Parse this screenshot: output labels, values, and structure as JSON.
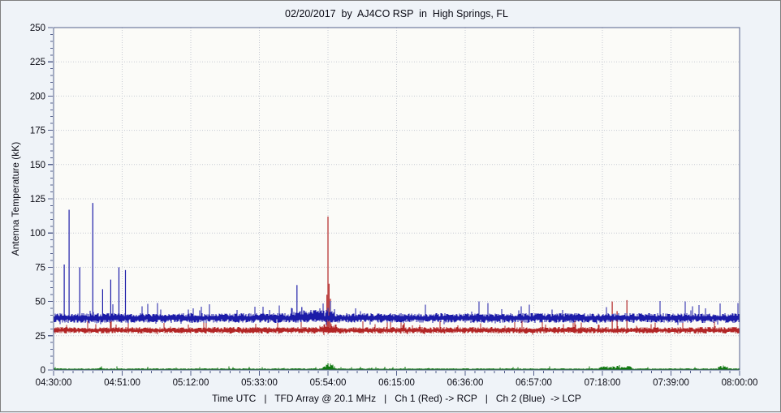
{
  "window": {
    "background": "#eff3f8",
    "plot_background": "#fbfbf8",
    "border_color": "#7f7f7f",
    "frame_color": "#55608c",
    "grid_color": "#c6cad2",
    "text_color": "#0a0a14"
  },
  "chart_data": {
    "type": "line",
    "title": "02/20/2017  by  AJ4CO RSP  in  High Springs, FL",
    "ylabel": "Antenna Temperature (kK)",
    "xlabel": "Time UTC   |   TFD Array @ 20.1 MHz   |   Ch 1 (Red) -> RCP   |   Ch 2 (Blue)  -> LCP",
    "x_start": "04:30:00",
    "x_end": "08:00:00",
    "x_ticks": [
      "04:30:00",
      "04:51:00",
      "05:12:00",
      "05:33:00",
      "05:54:00",
      "06:15:00",
      "06:36:00",
      "06:57:00",
      "07:18:00",
      "07:39:00",
      "08:00:00"
    ],
    "x_minor_seconds": 180,
    "ylim": [
      0,
      250
    ],
    "y_ticks": [
      0,
      25,
      50,
      75,
      100,
      125,
      150,
      175,
      200,
      225,
      250
    ],
    "y_minor_step": 5,
    "grid": "dotted",
    "legend_position": "none",
    "series": [
      {
        "id": "ch1-rcp",
        "name": "Ch 1 (Red) -> RCP",
        "color": "#b22525",
        "baseline_kk": 29,
        "noise_kk": 2,
        "seed": 11,
        "bumps": [
          {
            "start": "05:52:00",
            "end": "05:56:30",
            "peak_kk": 3
          }
        ],
        "spikes": [
          {
            "time": "05:53:40",
            "peak_kk": 55
          },
          {
            "time": "05:54:00",
            "peak_kk": 112
          },
          {
            "time": "05:54:20",
            "peak_kk": 63
          },
          {
            "time": "05:54:45",
            "peak_kk": 52
          },
          {
            "time": "07:21:00",
            "peak_kk": 50
          },
          {
            "time": "07:22:30",
            "peak_kk": 43
          },
          {
            "time": "07:25:30",
            "peak_kk": 51
          }
        ]
      },
      {
        "id": "ch2-lcp",
        "name": "Ch 2 (Blue) -> LCP",
        "color": "#1c1ca8",
        "baseline_kk": 38,
        "noise_kk": 3,
        "seed": 22,
        "bumps": [
          {
            "start": "05:43:00",
            "end": "05:56:00",
            "peak_kk": 4
          }
        ],
        "spikes": [
          {
            "time": "04:33:15",
            "peak_kk": 77
          },
          {
            "time": "04:34:45",
            "peak_kk": 117
          },
          {
            "time": "04:38:00",
            "peak_kk": 75
          },
          {
            "time": "04:42:00",
            "peak_kk": 122
          },
          {
            "time": "04:45:00",
            "peak_kk": 59
          },
          {
            "time": "04:47:30",
            "peak_kk": 66
          },
          {
            "time": "04:50:00",
            "peak_kk": 75
          },
          {
            "time": "04:52:00",
            "peak_kk": 73
          },
          {
            "time": "05:44:30",
            "peak_kk": 62
          },
          {
            "time": "05:46:00",
            "peak_kk": 46
          }
        ]
      },
      {
        "id": "green-trace",
        "name": "Green trace",
        "color": "#117a11",
        "baseline_kk": 0.5,
        "noise_kk": 0.6,
        "seed": 33,
        "bumps": [
          {
            "start": "05:52:30",
            "end": "05:56:00",
            "peak_kk": 3
          },
          {
            "start": "07:17:00",
            "end": "07:27:00",
            "peak_kk": 2
          },
          {
            "start": "07:53:30",
            "end": "07:56:30",
            "peak_kk": 2
          }
        ],
        "spikes": [
          {
            "time": "05:54:00",
            "peak_kk": 5
          }
        ]
      }
    ]
  }
}
